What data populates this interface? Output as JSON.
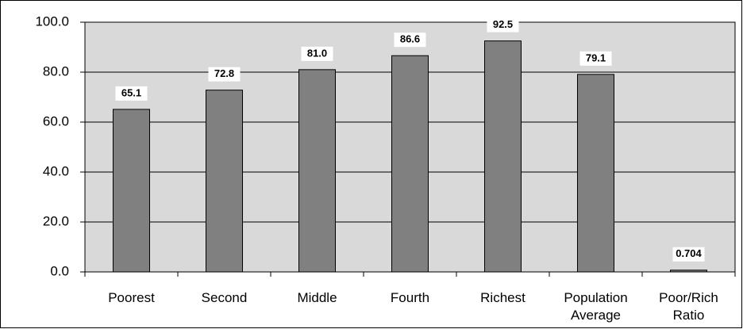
{
  "chart_data": {
    "type": "bar",
    "categories": [
      "Poorest",
      "Second",
      "Middle",
      "Fourth",
      "Richest",
      "Population Average",
      "Poor/Rich Ratio"
    ],
    "values": [
      65.1,
      72.8,
      81.0,
      86.6,
      92.5,
      79.1,
      0.704
    ],
    "value_labels": [
      "65.1",
      "72.8",
      "81.0",
      "86.6",
      "92.5",
      "79.1",
      "0.704"
    ],
    "color": "#808080",
    "ylim": [
      0,
      100
    ],
    "yticks": [
      {
        "value": 0,
        "label": "0.0"
      },
      {
        "value": 20,
        "label": "20.0"
      },
      {
        "value": 40,
        "label": "40.0"
      },
      {
        "value": 60,
        "label": "60.0"
      },
      {
        "value": 80,
        "label": "80.0"
      },
      {
        "value": 100,
        "label": "100.0"
      }
    ],
    "grid": true
  }
}
